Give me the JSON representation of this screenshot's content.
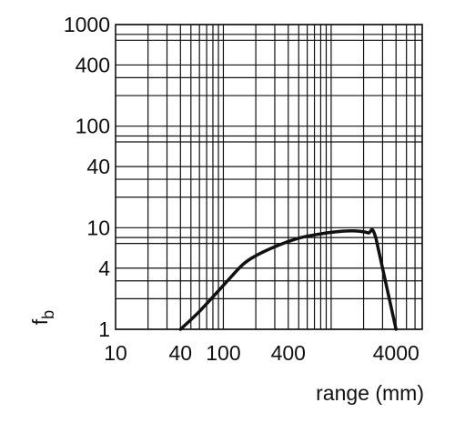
{
  "chart_data": {
    "type": "line",
    "xlabel": "range (mm)",
    "ylabel": "f",
    "ylabel_subscript": "b",
    "x_scale": "log",
    "y_scale": "log",
    "xlim": [
      10,
      7000
    ],
    "ylim": [
      1,
      1000
    ],
    "grid": true,
    "x_ticks": [
      {
        "value": 10,
        "label": "10"
      },
      {
        "value": 40,
        "label": "40"
      },
      {
        "value": 100,
        "label": "100"
      },
      {
        "value": 400,
        "label": "400"
      },
      {
        "value": 4000,
        "label": "4000"
      }
    ],
    "y_ticks": [
      {
        "value": 1,
        "label": "1"
      },
      {
        "value": 4,
        "label": "4"
      },
      {
        "value": 10,
        "label": "10"
      },
      {
        "value": 40,
        "label": "40"
      },
      {
        "value": 100,
        "label": "100"
      },
      {
        "value": 400,
        "label": "400"
      },
      {
        "value": 1000,
        "label": "1000"
      }
    ],
    "x_gridlines": [
      20,
      30,
      40,
      50,
      60,
      70,
      80,
      90,
      100,
      200,
      300,
      400,
      500,
      600,
      700,
      800,
      900,
      1000,
      2000,
      3000,
      4000,
      5000,
      6000,
      7000
    ],
    "y_gridlines": [
      1,
      2,
      3,
      4,
      7,
      8,
      10,
      20,
      30,
      40,
      70,
      80,
      100,
      200,
      300,
      400,
      700,
      800,
      1000
    ],
    "series": [
      {
        "x": [
          40,
          60,
          100,
          150,
          200,
          300,
          500,
          800,
          1100,
          1400,
          1700,
          2200,
          2600,
          4000
        ],
        "y": [
          1.0,
          1.5,
          2.7,
          4.3,
          5.3,
          6.5,
          7.9,
          8.7,
          9.1,
          9.3,
          9.3,
          8.9,
          7.9,
          1.0
        ]
      }
    ]
  }
}
